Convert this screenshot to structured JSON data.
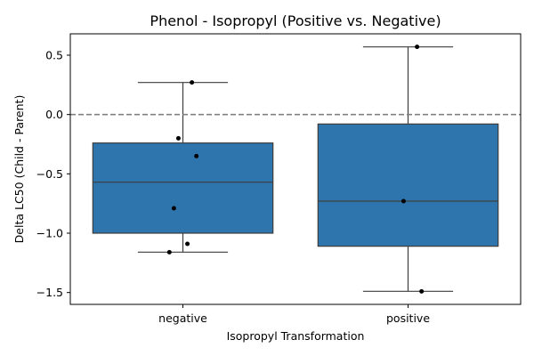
{
  "chart_data": {
    "type": "box",
    "title": "Phenol - Isopropyl (Positive vs. Negative)",
    "xlabel": "Isopropyl Transformation",
    "ylabel": "Delta LC50 (Child - Parent)",
    "categories": [
      "negative",
      "positive"
    ],
    "ylim": [
      -1.6,
      0.68
    ],
    "yticks": [
      0.5,
      0.0,
      -0.5,
      -1.0,
      -1.5
    ],
    "ytick_labels": [
      "0.5",
      "0.0",
      "−0.5",
      "−1.0",
      "−1.5"
    ],
    "reference_line": {
      "y": 0.0,
      "style": "dashed",
      "color": "#808080"
    },
    "box_color": "#2f75ad",
    "grid": false,
    "boxes": [
      {
        "category": "negative",
        "whisker_low": -1.16,
        "q1": -1.0,
        "median": -0.57,
        "q3": -0.24,
        "whisker_high": 0.27
      },
      {
        "category": "positive",
        "whisker_low": -1.49,
        "q1": -1.11,
        "median": -0.73,
        "q3": -0.08,
        "whisker_high": 0.57
      }
    ],
    "points": [
      {
        "category": "negative",
        "y": 0.27
      },
      {
        "category": "negative",
        "y": -0.2
      },
      {
        "category": "negative",
        "y": -0.35
      },
      {
        "category": "negative",
        "y": -0.79
      },
      {
        "category": "negative",
        "y": -1.09
      },
      {
        "category": "negative",
        "y": -1.16
      },
      {
        "category": "positive",
        "y": 0.57
      },
      {
        "category": "positive",
        "y": -0.73
      },
      {
        "category": "positive",
        "y": -1.49
      }
    ]
  }
}
